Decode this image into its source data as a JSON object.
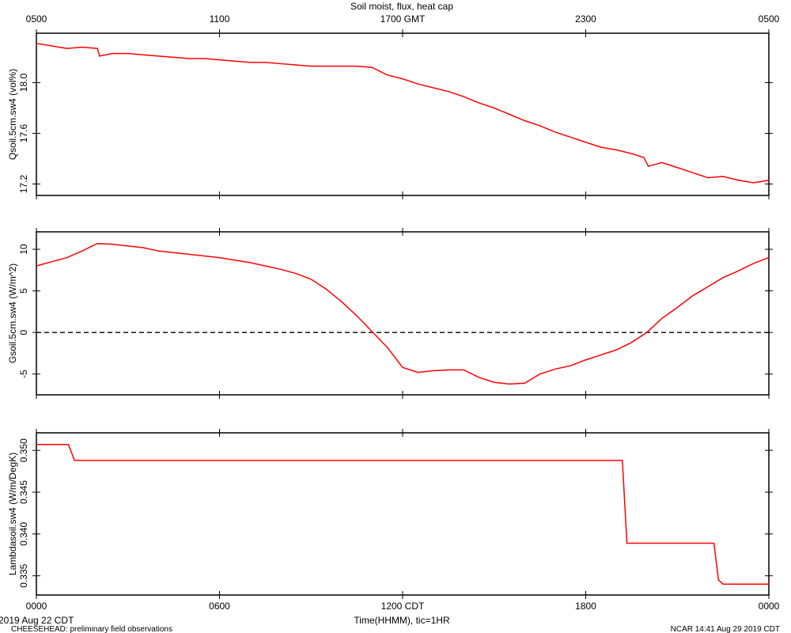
{
  "chart_data": [
    {
      "type": "line",
      "title": "Soil moist, flux, heat cap",
      "ylabel": "Qsoil.5cm.sw4 (vol%)",
      "x": [
        0,
        0.5,
        1,
        1.5,
        2,
        2.07,
        2.5,
        3,
        3.5,
        4,
        4.5,
        5,
        5.5,
        6,
        6.5,
        7,
        7.5,
        8,
        8.5,
        9,
        9.5,
        10,
        10.5,
        11,
        11.5,
        12,
        12.5,
        13,
        13.5,
        14,
        14.5,
        15,
        15.5,
        16,
        16.5,
        17,
        17.5,
        18,
        18.5,
        19,
        19.5,
        19.9,
        20.05,
        20.5,
        21,
        21.5,
        22,
        22.5,
        23,
        23.5,
        24
      ],
      "series": [
        {
          "name": "Qsoil.5cm.sw4",
          "color": "#ff0000",
          "values": [
            18.31,
            18.29,
            18.27,
            18.28,
            18.27,
            18.21,
            18.23,
            18.23,
            18.22,
            18.21,
            18.2,
            18.19,
            18.19,
            18.18,
            18.17,
            18.16,
            18.16,
            18.15,
            18.14,
            18.13,
            18.13,
            18.13,
            18.13,
            18.12,
            18.06,
            18.03,
            17.99,
            17.96,
            17.93,
            17.89,
            17.84,
            17.8,
            17.75,
            17.7,
            17.66,
            17.61,
            17.57,
            17.53,
            17.49,
            17.47,
            17.44,
            17.41,
            17.34,
            17.37,
            17.33,
            17.29,
            17.25,
            17.26,
            17.23,
            17.21,
            17.23
          ]
        }
      ],
      "xlim": [
        0,
        24
      ],
      "xticks": [
        {
          "value": 0,
          "label": "0500"
        },
        {
          "value": 6,
          "label": "1100"
        },
        {
          "value": 12,
          "label": "1700 GMT"
        },
        {
          "value": 18,
          "label": "2300"
        },
        {
          "value": 24,
          "label": "0500"
        }
      ],
      "ylim": [
        17.11,
        18.39
      ],
      "yticks": [
        17.2,
        17.6,
        {
          "value": 18.0,
          "label": "18.0"
        }
      ]
    },
    {
      "type": "line",
      "ylabel": "Gsoil.5cm.sw4 (W/m^2)",
      "x": [
        0,
        0.5,
        1,
        1.5,
        2,
        2.5,
        3,
        3.5,
        4,
        4.5,
        5,
        5.5,
        6,
        6.5,
        7,
        7.5,
        8,
        8.5,
        9,
        9.5,
        10,
        10.5,
        11,
        11.5,
        12,
        12.5,
        13,
        13.5,
        14,
        14.5,
        15,
        15.5,
        16,
        16.5,
        17,
        17.5,
        18,
        18.5,
        19,
        19.5,
        20,
        20.5,
        21,
        21.5,
        22,
        22.5,
        23,
        23.5,
        24
      ],
      "series": [
        {
          "name": "Gsoil.5cm.sw4",
          "color": "#ff0000",
          "values": [
            8.0,
            8.5,
            9.0,
            9.8,
            10.7,
            10.6,
            10.4,
            10.2,
            9.8,
            9.6,
            9.4,
            9.2,
            9.0,
            8.7,
            8.4,
            8.0,
            7.6,
            7.1,
            6.4,
            5.2,
            3.7,
            2.0,
            0.1,
            -1.8,
            -4.2,
            -4.8,
            -4.6,
            -4.5,
            -4.5,
            -5.4,
            -6.0,
            -6.2,
            -6.1,
            -5.0,
            -4.4,
            -4.0,
            -3.3,
            -2.7,
            -2.1,
            -1.2,
            0.0,
            1.7,
            3.0,
            4.4,
            5.5,
            6.6,
            7.4,
            8.3,
            9.0
          ]
        }
      ],
      "xlim": [
        0,
        24
      ],
      "ylim": [
        -7.5,
        12.1
      ],
      "yticks": [
        -5,
        0,
        5,
        10
      ],
      "reference_line": {
        "value": 0,
        "style": "dashed",
        "color": "#000000"
      }
    },
    {
      "type": "line",
      "ylabel": "Lambdasoil.sw4 (W/m/DegK)",
      "xlabel": "Time(HHMM), tic=1HR",
      "x": [
        0,
        1.05,
        1.25,
        19.2,
        19.35,
        22.2,
        22.35,
        22.5,
        24
      ],
      "series": [
        {
          "name": "Lambdasoil.sw4",
          "color": "#ff0000",
          "values": [
            0.3507,
            0.3507,
            0.3488,
            0.3488,
            0.3389,
            0.3389,
            0.3345,
            0.334,
            0.334
          ]
        }
      ],
      "xlim": [
        0,
        24
      ],
      "xticks": [
        {
          "value": 0,
          "label": "0000"
        },
        {
          "value": 6,
          "label": "0600"
        },
        {
          "value": 12,
          "label": "1200 CDT"
        },
        {
          "value": 18,
          "label": "1800"
        },
        {
          "value": 24,
          "label": "0000"
        }
      ],
      "ylim": [
        0.3327,
        0.3521
      ],
      "yticks": [
        0.335,
        {
          "value": 0.34,
          "label": "0.340"
        },
        0.345,
        {
          "value": 0.35,
          "label": "0.350"
        }
      ]
    }
  ],
  "footer": {
    "date": "2019 Aug 22 CDT",
    "project": "CHEESEHEAD: preliminary field observations",
    "stamp": "NCAR 14:41 Aug 29 2019 CDT"
  }
}
